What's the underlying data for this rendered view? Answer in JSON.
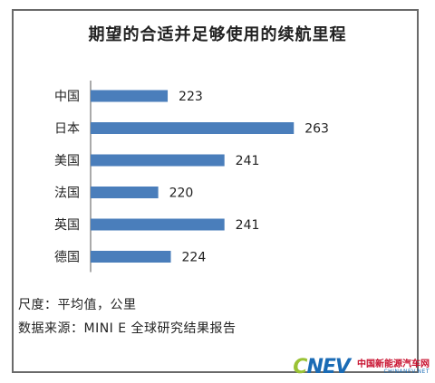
{
  "chart_data": {
    "type": "bar",
    "orientation": "horizontal",
    "title": "期望的合适并足够使用的续航里程",
    "categories": [
      "中国",
      "日本",
      "美国",
      "法国",
      "英国",
      "德国"
    ],
    "values": [
      223,
      263,
      241,
      220,
      241,
      224
    ],
    "xlim": [
      200,
      270
    ],
    "bar_color": "#4a7ebb",
    "grid": false,
    "legend": "none"
  },
  "footnotes": {
    "unit": "尺度：平均值，公里",
    "source": "数据来源：MINI E 全球研究结果报告"
  },
  "watermark": {
    "logo_c": "C",
    "logo_rest": "NEV",
    "name": "中国新能源汽车网",
    "url": "CHINANEV.NET"
  }
}
